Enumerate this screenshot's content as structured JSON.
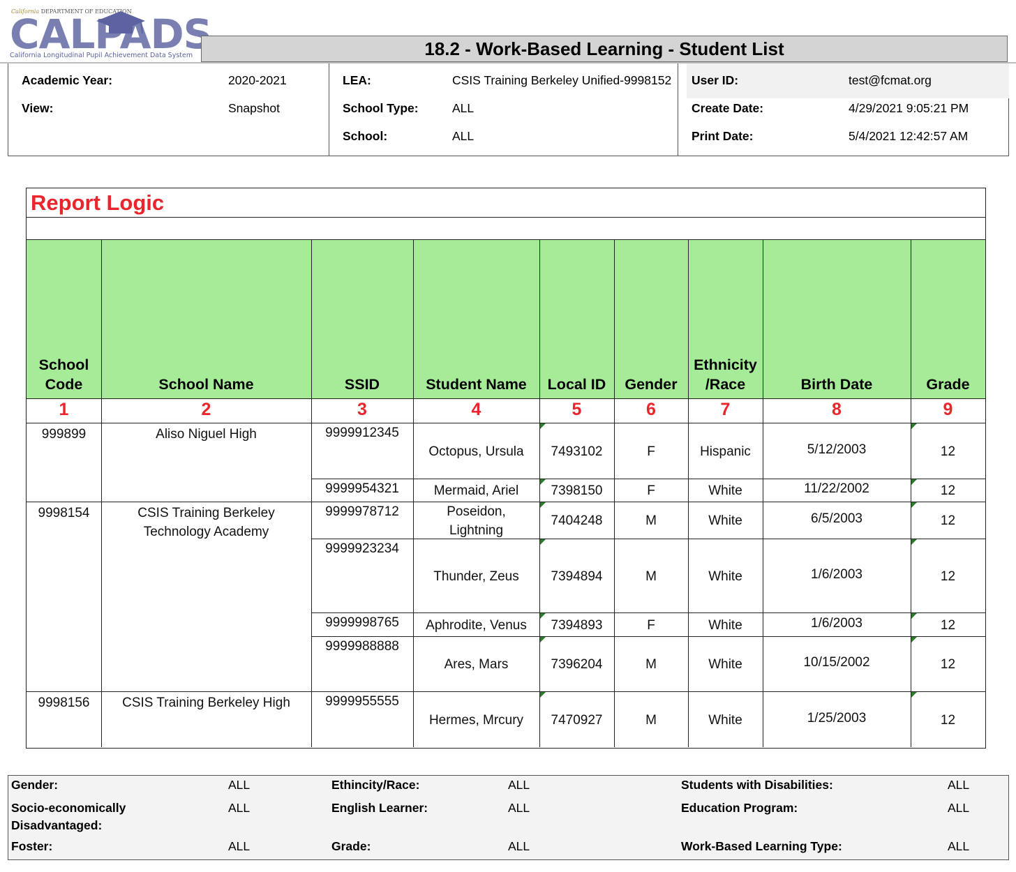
{
  "logo": {
    "top_line_italic": "California",
    "top_line": "DEPARTMENT OF EDUCATION",
    "wordmark": "CALPADS",
    "subtitle": "California Longitudinal Pupil Achievement Data System"
  },
  "report_title": "18.2 - Work-Based Learning - Student List",
  "info": {
    "academic_year": {
      "label": "Academic Year:",
      "value": "2020-2021"
    },
    "view": {
      "label": "View:",
      "value": "Snapshot"
    },
    "lea": {
      "label": "LEA:",
      "value": "CSIS Training Berkeley Unified-9998152"
    },
    "school_type": {
      "label": "School Type:",
      "value": "ALL"
    },
    "school": {
      "label": "School:",
      "value": "ALL"
    },
    "user_id": {
      "label": "User ID:",
      "value": "test@fcmat.org"
    },
    "create_date": {
      "label": "Create Date:",
      "value": "4/29/2021 9:05:21 PM"
    },
    "print_date": {
      "label": "Print Date:",
      "value": "5/4/2021 12:42:57 AM"
    }
  },
  "report_logic": {
    "title": "Report Logic",
    "columns": [
      {
        "line1": "School",
        "line2": "Code",
        "number": "1"
      },
      {
        "line1": "",
        "line2": "School Name",
        "number": "2"
      },
      {
        "line1": "",
        "line2": "SSID",
        "number": "3"
      },
      {
        "line1": "",
        "line2": "Student Name",
        "number": "4"
      },
      {
        "line1": "",
        "line2": "Local ID",
        "number": "5"
      },
      {
        "line1": "",
        "line2": "Gender",
        "number": "6"
      },
      {
        "line1": "Ethnicity",
        "line2": "/Race",
        "number": "7"
      },
      {
        "line1": "",
        "line2": "Birth Date",
        "number": "8"
      },
      {
        "line1": "",
        "line2": "Grade",
        "number": "9"
      }
    ],
    "schools": [
      {
        "code": "999899",
        "name_line1": "Aliso Niguel High",
        "name_line2": ""
      },
      {
        "code": "9998154",
        "name_line1": "CSIS Training Berkeley",
        "name_line2": "Technology Academy"
      },
      {
        "code": "9998156",
        "name_line1": "CSIS Training Berkeley High",
        "name_line2": ""
      }
    ],
    "students": [
      {
        "ssid": "9999912345",
        "name_line1": "Octopus, Ursula",
        "name_line2": "",
        "local_id": "7493102",
        "gender": "F",
        "ethnicity": "Hispanic",
        "birth_date": "5/12/2003",
        "grade": "12"
      },
      {
        "ssid": "9999954321",
        "name_line1": "Mermaid, Ariel",
        "name_line2": "",
        "local_id": "7398150",
        "gender": "F",
        "ethnicity": "White",
        "birth_date": "11/22/2002",
        "grade": "12"
      },
      {
        "ssid": "9999978712",
        "name_line1": "Poseidon,",
        "name_line2": "Lightning",
        "local_id": "7404248",
        "gender": "M",
        "ethnicity": "White",
        "birth_date": "6/5/2003",
        "grade": "12"
      },
      {
        "ssid": "9999923234",
        "name_line1": "Thunder, Zeus",
        "name_line2": "",
        "local_id": "7394894",
        "gender": "M",
        "ethnicity": "White",
        "birth_date": "1/6/2003",
        "grade": "12"
      },
      {
        "ssid": "9999998765",
        "name_line1": "Aphrodite, Venus",
        "name_line2": "",
        "local_id": "7394893",
        "gender": "F",
        "ethnicity": "White",
        "birth_date": "1/6/2003",
        "grade": "12"
      },
      {
        "ssid": "9999988888",
        "name_line1": "Ares, Mars",
        "name_line2": "",
        "local_id": "7396204",
        "gender": "M",
        "ethnicity": "White",
        "birth_date": "10/15/2002",
        "grade": "12"
      },
      {
        "ssid": "9999955555",
        "name_line1": "Hermes, Mrcury",
        "name_line2": "",
        "local_id": "7470927",
        "gender": "M",
        "ethnicity": "White",
        "birth_date": "1/25/2003",
        "grade": "12"
      }
    ]
  },
  "filters": {
    "gender": {
      "label": "Gender:",
      "value": "ALL"
    },
    "socio": {
      "label_line1": "Socio-economically",
      "label_line2": "Disadvantaged:",
      "value": "ALL"
    },
    "foster": {
      "label": "Foster:",
      "value": "ALL"
    },
    "ethnicity": {
      "label": "Ethincity/Race:",
      "value": "ALL"
    },
    "english_learner": {
      "label": "English Learner:",
      "value": "ALL"
    },
    "grade": {
      "label": "Grade:",
      "value": "ALL"
    },
    "disabilities": {
      "label": "Students with Disabilities:",
      "value": "ALL"
    },
    "education_program": {
      "label": "Education Program:",
      "value": "ALL"
    },
    "wbl_type": {
      "label": "Work-Based Learning Type:",
      "value": "ALL"
    }
  },
  "colors": {
    "header_green": "#a6ec98",
    "title_red": "#e8262b",
    "title_bar_gray": "#d4d4d4"
  }
}
